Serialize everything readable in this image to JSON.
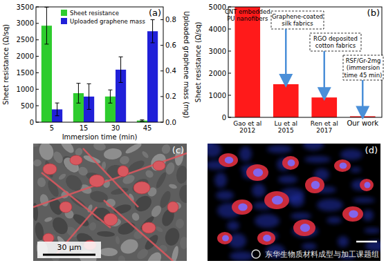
{
  "chart_data": [
    {
      "type": "bar",
      "title": "(a)",
      "x_label": "Immersion time (min)",
      "y_label": "Sheet resistance (Ω/sq)",
      "y2_label": "Uploaded graphene mass (mg)",
      "categories": [
        "5",
        "15",
        "30",
        "45"
      ],
      "series": [
        {
          "name": "Sheet resistance",
          "color": "#2ecc2e",
          "values": [
            2930,
            880,
            780,
            50
          ],
          "errors": [
            560,
            300,
            200,
            20
          ]
        },
        {
          "name": "Uploaded graphene mass",
          "color": "#2020d8",
          "axis": "y2",
          "values": [
            0.1,
            0.2,
            0.41,
            0.71
          ],
          "errors": [
            0.05,
            0.1,
            0.1,
            0.09
          ]
        }
      ],
      "ylim": [
        0,
        3500
      ],
      "yticks": [
        0,
        500,
        1000,
        1500,
        2000,
        2500,
        3000,
        3500
      ],
      "y2lim": [
        0,
        0.9
      ],
      "y2ticks": [
        {
          "value": 0,
          "label": "0.0"
        },
        {
          "value": 0.2,
          "label": "0.2"
        },
        {
          "value": 0.4,
          "label": "0.4"
        },
        {
          "value": 0.6,
          "label": "0.6"
        },
        {
          "value": 0.8,
          "label": "0.8"
        }
      ],
      "legend": "top"
    },
    {
      "type": "bar",
      "title": "(b)",
      "y_label": "Sheet resistance (Ω/sq)",
      "categories": [
        "Gao et al\n2012",
        "Lu et al\n2015",
        "Ren et al\n2017",
        "Our work"
      ],
      "values": [
        5000,
        1500,
        900,
        50
      ],
      "color": "#ff1a1a",
      "ylim": [
        0,
        5000
      ],
      "yticks": [
        0,
        1000,
        2000,
        3000,
        4000,
        5000
      ],
      "annotations": [
        {
          "category": 0,
          "text": [
            "CNT embedded",
            "PU nanofibers"
          ]
        },
        {
          "category": 1,
          "text": [
            "Graphene-coated",
            "silk fabrics"
          ]
        },
        {
          "category": 2,
          "text": [
            "RGO deposited",
            "cotton fabrics"
          ]
        },
        {
          "category": 3,
          "text": [
            "RSF/Gr-2mg",
            "(immersion",
            "time 45 min)"
          ]
        }
      ]
    }
  ],
  "images": [
    {
      "label": "(c)",
      "scale_bar": "30 μm"
    },
    {
      "label": "(d)"
    }
  ],
  "watermark": "东华生物质材料成型与加工课题组"
}
